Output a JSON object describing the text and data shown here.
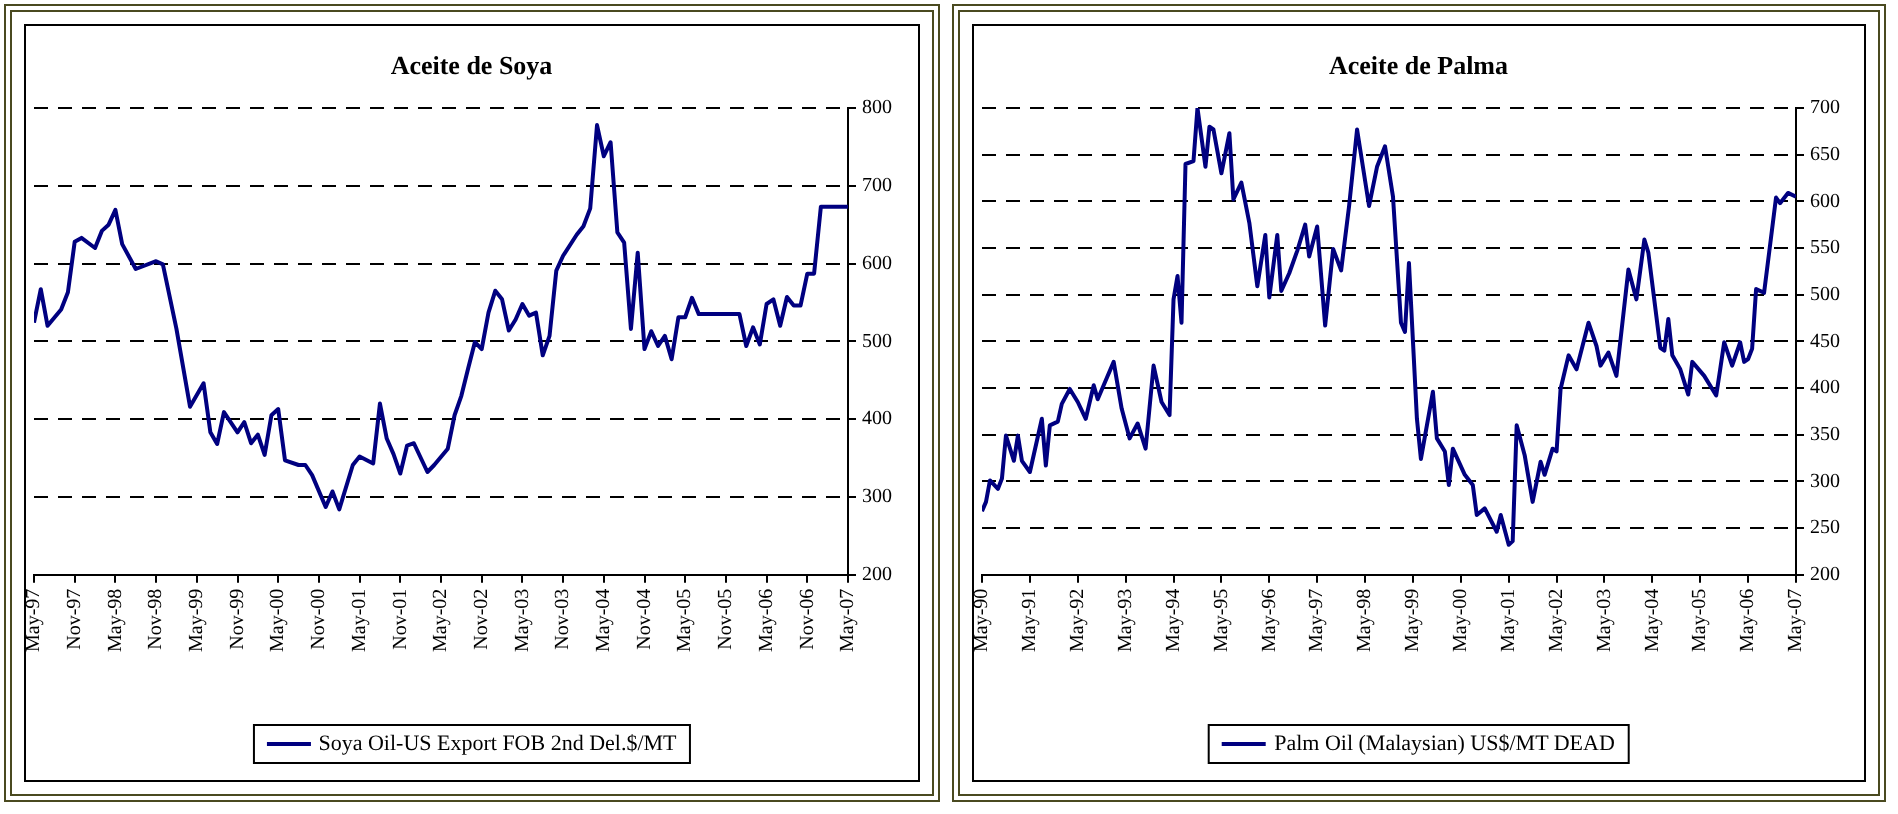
{
  "chart_data": [
    {
      "type": "line",
      "title": "Aceite de Soya",
      "grid": "y",
      "legend": "bottom",
      "marker": "none",
      "line_style": "solid",
      "xlim": [
        "1997-05",
        "2007-05"
      ],
      "xticks": [
        {
          "value": "1997-05",
          "label": "May-97"
        },
        {
          "value": "1997-11",
          "label": "Nov-97"
        },
        {
          "value": "1998-05",
          "label": "May-98"
        },
        {
          "value": "1998-11",
          "label": "Nov-98"
        },
        {
          "value": "1999-05",
          "label": "May-99"
        },
        {
          "value": "1999-11",
          "label": "Nov-99"
        },
        {
          "value": "2000-05",
          "label": "May-00"
        },
        {
          "value": "2000-11",
          "label": "Nov-00"
        },
        {
          "value": "2001-05",
          "label": "May-01"
        },
        {
          "value": "2001-11",
          "label": "Nov-01"
        },
        {
          "value": "2002-05",
          "label": "May-02"
        },
        {
          "value": "2002-11",
          "label": "Nov-02"
        },
        {
          "value": "2003-05",
          "label": "May-03"
        },
        {
          "value": "2003-11",
          "label": "Nov-03"
        },
        {
          "value": "2004-05",
          "label": "May-04"
        },
        {
          "value": "2004-11",
          "label": "Nov-04"
        },
        {
          "value": "2005-05",
          "label": "May-05"
        },
        {
          "value": "2005-11",
          "label": "Nov-05"
        },
        {
          "value": "2006-05",
          "label": "May-06"
        },
        {
          "value": "2006-11",
          "label": "Nov-06"
        },
        {
          "value": "2007-05",
          "label": "May-07"
        }
      ],
      "ylim": [
        200,
        800
      ],
      "yticks": [
        200,
        300,
        400,
        500,
        600,
        700,
        800
      ],
      "series": [
        {
          "name": "Soya Oil-US Export FOB 2nd Del.$/MT",
          "color": "#000080",
          "x": [
            "1997-05",
            "1997-06",
            "1997-07",
            "1997-09",
            "1997-10",
            "1997-11",
            "1997-12",
            "1998-02",
            "1998-03",
            "1998-04",
            "1998-05",
            "1998-06",
            "1998-08",
            "1998-11",
            "1998-12",
            "1999-02",
            "1999-04",
            "1999-06",
            "1999-07",
            "1999-08",
            "1999-09",
            "1999-11",
            "1999-12",
            "2000-01",
            "2000-02",
            "2000-03",
            "2000-04",
            "2000-05",
            "2000-06",
            "2000-08",
            "2000-09",
            "2000-10",
            "2000-12",
            "2001-01",
            "2001-02",
            "2001-04",
            "2001-05",
            "2001-07",
            "2001-08",
            "2001-09",
            "2001-10",
            "2001-11",
            "2001-12",
            "2002-01",
            "2002-03",
            "2002-04",
            "2002-06",
            "2002-07",
            "2002-08",
            "2002-09",
            "2002-10",
            "2002-11",
            "2002-12",
            "2003-01",
            "2003-02",
            "2003-03",
            "2003-04",
            "2003-05",
            "2003-06",
            "2003-07",
            "2003-08",
            "2003-09",
            "2003-10",
            "2003-11",
            "2004-01",
            "2004-02",
            "2004-03",
            "2004-04",
            "2004-05",
            "2004-06",
            "2004-07",
            "2004-08",
            "2004-09",
            "2004-10",
            "2004-11",
            "2004-12",
            "2005-01",
            "2005-02",
            "2005-03",
            "2005-04",
            "2005-05",
            "2005-06",
            "2005-07",
            "2006-01",
            "2006-02",
            "2006-03",
            "2006-04",
            "2006-05",
            "2006-06",
            "2006-07",
            "2006-08",
            "2006-09",
            "2006-10",
            "2006-11",
            "2006-12",
            "2007-01",
            "2007-05"
          ],
          "values": [
            524,
            567,
            520,
            541,
            563,
            628,
            633,
            620,
            642,
            650,
            669,
            625,
            593,
            603,
            599,
            516,
            416,
            446,
            383,
            368,
            409,
            383,
            396,
            369,
            380,
            354,
            405,
            413,
            347,
            341,
            341,
            328,
            287,
            307,
            284,
            341,
            352,
            343,
            420,
            375,
            355,
            330,
            366,
            369,
            332,
            341,
            362,
            405,
            430,
            465,
            499,
            490,
            537,
            565,
            554,
            514,
            528,
            548,
            533,
            537,
            482,
            507,
            591,
            610,
            637,
            648,
            671,
            778,
            738,
            756,
            640,
            627,
            516,
            614,
            490,
            513,
            494,
            507,
            477,
            531,
            531,
            556,
            535,
            535,
            494,
            518,
            496,
            548,
            554,
            520,
            557,
            546,
            546,
            587,
            587,
            673,
            673
          ]
        }
      ]
    },
    {
      "type": "line",
      "title": "Aceite de Palma",
      "grid": "y",
      "legend": "bottom",
      "marker": "none",
      "line_style": "solid",
      "xlim": [
        "1990-05",
        "2007-05"
      ],
      "xticks": [
        {
          "value": "1990-05",
          "label": "May-90"
        },
        {
          "value": "1991-05",
          "label": "May-91"
        },
        {
          "value": "1992-05",
          "label": "May-92"
        },
        {
          "value": "1993-05",
          "label": "May-93"
        },
        {
          "value": "1994-05",
          "label": "May-94"
        },
        {
          "value": "1995-05",
          "label": "May-95"
        },
        {
          "value": "1996-05",
          "label": "May-96"
        },
        {
          "value": "1997-05",
          "label": "May-97"
        },
        {
          "value": "1998-05",
          "label": "May-98"
        },
        {
          "value": "1999-05",
          "label": "May-99"
        },
        {
          "value": "2000-05",
          "label": "May-00"
        },
        {
          "value": "2001-05",
          "label": "May-01"
        },
        {
          "value": "2002-05",
          "label": "May-02"
        },
        {
          "value": "2003-05",
          "label": "May-03"
        },
        {
          "value": "2004-05",
          "label": "May-04"
        },
        {
          "value": "2005-05",
          "label": "May-05"
        },
        {
          "value": "2006-05",
          "label": "May-06"
        },
        {
          "value": "2007-05",
          "label": "May-07"
        }
      ],
      "ylim": [
        200,
        700
      ],
      "yticks": [
        200,
        250,
        300,
        350,
        400,
        450,
        500,
        550,
        600,
        650,
        700
      ],
      "series": [
        {
          "name": "Palm Oil (Malaysian) US$/MT DEAD",
          "color": "#000080",
          "x": [
            "1990-05",
            "1990-06",
            "1990-07",
            "1990-09",
            "1990-10",
            "1990-11",
            "1991-01",
            "1991-02",
            "1991-03",
            "1991-05",
            "1991-08",
            "1991-09",
            "1991-10",
            "1991-12",
            "1992-01",
            "1992-03",
            "1992-05",
            "1992-07",
            "1992-09",
            "1992-10",
            "1992-12",
            "1993-02",
            "1993-04",
            "1993-06",
            "1993-08",
            "1993-10",
            "1993-12",
            "1994-02",
            "1994-04",
            "1994-05",
            "1994-06",
            "1994-07",
            "1994-08",
            "1994-10",
            "1994-11",
            "1995-01",
            "1995-02",
            "1995-03",
            "1995-05",
            "1995-07",
            "1995-08",
            "1995-10",
            "1995-12",
            "1996-02",
            "1996-04",
            "1996-05",
            "1996-07",
            "1996-08",
            "1996-10",
            "1996-12",
            "1997-02",
            "1997-03",
            "1997-05",
            "1997-07",
            "1997-09",
            "1997-11",
            "1998-01",
            "1998-03",
            "1998-06",
            "1998-08",
            "1998-10",
            "1998-12",
            "1999-02",
            "1999-03",
            "1999-04",
            "1999-06",
            "1999-07",
            "1999-10",
            "1999-11",
            "2000-01",
            "2000-02",
            "2000-03",
            "2000-06",
            "2000-08",
            "2000-09",
            "2000-11",
            "2001-02",
            "2001-03",
            "2001-05",
            "2001-06",
            "2001-07",
            "2001-09",
            "2001-11",
            "2002-01",
            "2002-02",
            "2002-04",
            "2002-05",
            "2002-06",
            "2002-08",
            "2002-10",
            "2003-01",
            "2003-03",
            "2003-04",
            "2003-06",
            "2003-08",
            "2003-11",
            "2004-01",
            "2004-03",
            "2004-04",
            "2004-07",
            "2004-08",
            "2004-09",
            "2004-10",
            "2004-12",
            "2005-02",
            "2005-03",
            "2005-06",
            "2005-09",
            "2005-10",
            "2005-11",
            "2006-01",
            "2006-03",
            "2006-04",
            "2006-05",
            "2006-06",
            "2006-07",
            "2006-09",
            "2006-12",
            "2007-01",
            "2007-03",
            "2007-05"
          ],
          "values": [
            268,
            278,
            301,
            292,
            303,
            349,
            322,
            349,
            322,
            310,
            367,
            317,
            360,
            364,
            383,
            399,
            385,
            367,
            403,
            388,
            408,
            428,
            378,
            346,
            362,
            335,
            424,
            385,
            371,
            495,
            520,
            470,
            640,
            643,
            700,
            637,
            680,
            677,
            630,
            673,
            602,
            620,
            577,
            509,
            564,
            497,
            564,
            504,
            523,
            547,
            575,
            541,
            573,
            467,
            549,
            526,
            595,
            677,
            595,
            637,
            659,
            605,
            470,
            460,
            534,
            367,
            324,
            396,
            346,
            332,
            296,
            335,
            307,
            296,
            264,
            271,
            246,
            264,
            232,
            236,
            360,
            328,
            278,
            321,
            307,
            335,
            332,
            399,
            435,
            420,
            470,
            445,
            424,
            438,
            413,
            527,
            495,
            559,
            545,
            443,
            440,
            474,
            435,
            420,
            393,
            428,
            413,
            392,
            420,
            449,
            424,
            449,
            428,
            431,
            442,
            506,
            502,
            604,
            598,
            609,
            605
          ]
        }
      ]
    }
  ]
}
